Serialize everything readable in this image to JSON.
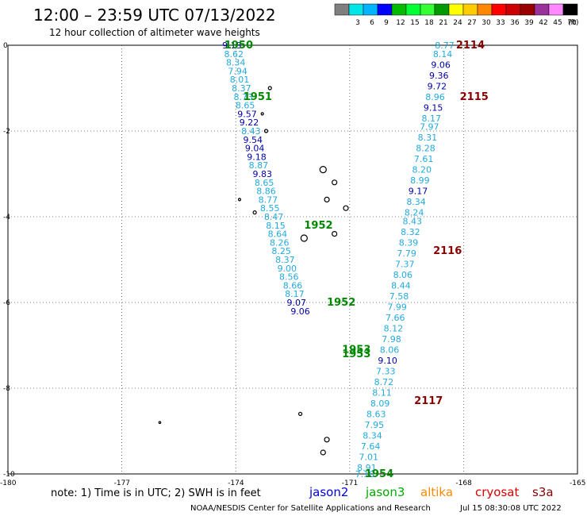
{
  "header": {
    "title": "12:00 – 23:59 UTC 07/13/2022",
    "subtitle": "12 hour collection of altimeter wave heights"
  },
  "legend": {
    "unit_label": "(ft)",
    "swatches": [
      {
        "label": "",
        "color": "#7f7f7f"
      },
      {
        "label": "3",
        "color": "#00e5e5"
      },
      {
        "label": "6",
        "color": "#00b4ff"
      },
      {
        "label": "9",
        "color": "#0000ff"
      },
      {
        "label": "12",
        "color": "#00bb00"
      },
      {
        "label": "15",
        "color": "#00ff33"
      },
      {
        "label": "18",
        "color": "#33ff33"
      },
      {
        "label": "21",
        "color": "#009900"
      },
      {
        "label": "24",
        "color": "#ffff00"
      },
      {
        "label": "27",
        "color": "#ffcc00"
      },
      {
        "label": "30",
        "color": "#ff8800"
      },
      {
        "label": "33",
        "color": "#ff0000"
      },
      {
        "label": "36",
        "color": "#cc0000"
      },
      {
        "label": "39",
        "color": "#990000"
      },
      {
        "label": "42",
        "color": "#993399"
      },
      {
        "label": "45",
        "color": "#ff88ff"
      },
      {
        "label": "70",
        "color": "#000000"
      }
    ]
  },
  "footer": {
    "note": "note:  1) Time is in UTC; 2) SWH is in feet",
    "credit": "NOAA/NESDIS Center for Satellite Applications and Research",
    "timestamp": "Jul 15 08:30:08 UTC 2022",
    "satellites": [
      {
        "name": "jason2",
        "color": "#0000dd"
      },
      {
        "name": "jason3",
        "color": "#00aa00"
      },
      {
        "name": "altika",
        "color": "#ff8800"
      },
      {
        "name": "cryosat",
        "color": "#dd0000"
      },
      {
        "name": "s3a",
        "color": "#880000"
      }
    ]
  },
  "chart_data": {
    "type": "scatter",
    "xlim": [
      -180,
      -165
    ],
    "ylim": [
      -10,
      0
    ],
    "x_ticks": [
      "-180",
      "-177",
      "-174",
      "-171",
      "-168",
      "-165"
    ],
    "y_ticks": [
      "0",
      "-2",
      "-4",
      "-6",
      "-8",
      "-10"
    ],
    "grid": true,
    "colors": {
      "light": "#22aadd",
      "dark": "#0000aa",
      "jason3": "#008800",
      "cryosat": "#880000"
    },
    "time_labels": [
      {
        "text": "1950",
        "x": -174.3,
        "y": 0.0,
        "group": "jason3"
      },
      {
        "text": "1951",
        "x": -173.8,
        "y": -1.2,
        "group": "jason3"
      },
      {
        "text": "1952",
        "x": -172.2,
        "y": -4.2,
        "group": "jason3"
      },
      {
        "text": "1952",
        "x": -171.6,
        "y": -6.0,
        "group": "jason3"
      },
      {
        "text": "1953",
        "x": -171.2,
        "y": -7.1,
        "group": "jason3"
      },
      {
        "text": "1953",
        "x": -171.2,
        "y": -7.2,
        "group": "jason3"
      },
      {
        "text": "1954",
        "x": -170.6,
        "y": -10.0,
        "group": "jason3"
      },
      {
        "text": "2114",
        "x": -168.2,
        "y": 0.0,
        "group": "cryosat"
      },
      {
        "text": "2115",
        "x": -168.1,
        "y": -1.2,
        "group": "cryosat"
      },
      {
        "text": "2116",
        "x": -168.8,
        "y": -4.8,
        "group": "cryosat"
      },
      {
        "text": "2117",
        "x": -169.3,
        "y": -8.3,
        "group": "cryosat"
      }
    ],
    "series": [
      {
        "name": "jason3",
        "points": [
          {
            "x": -174.1,
            "y": 0.0,
            "v": "9.13",
            "c": "dark"
          },
          {
            "x": -174.05,
            "y": -0.2,
            "v": "8.62",
            "c": "light"
          },
          {
            "x": -174.0,
            "y": -0.4,
            "v": "8.34",
            "c": "light"
          },
          {
            "x": -173.95,
            "y": -0.6,
            "v": "7.94",
            "c": "light"
          },
          {
            "x": -173.9,
            "y": -0.8,
            "v": "8.01",
            "c": "light"
          },
          {
            "x": -173.85,
            "y": -1.0,
            "v": "8.37",
            "c": "light"
          },
          {
            "x": -173.8,
            "y": -1.2,
            "v": "8.73",
            "c": "light"
          },
          {
            "x": -173.75,
            "y": -1.4,
            "v": "8.65",
            "c": "light"
          },
          {
            "x": -173.7,
            "y": -1.6,
            "v": "9.57",
            "c": "dark"
          },
          {
            "x": -173.65,
            "y": -1.8,
            "v": "9.22",
            "c": "dark"
          },
          {
            "x": -173.6,
            "y": -2.0,
            "v": "8.43",
            "c": "light"
          },
          {
            "x": -173.55,
            "y": -2.2,
            "v": "9.54",
            "c": "dark"
          },
          {
            "x": -173.5,
            "y": -2.4,
            "v": "9.04",
            "c": "dark"
          },
          {
            "x": -173.45,
            "y": -2.6,
            "v": "9.18",
            "c": "dark"
          },
          {
            "x": -173.4,
            "y": -2.8,
            "v": "8.87",
            "c": "light"
          },
          {
            "x": -173.3,
            "y": -3.0,
            "v": "9.83",
            "c": "dark"
          },
          {
            "x": -173.25,
            "y": -3.2,
            "v": "8.65",
            "c": "light"
          },
          {
            "x": -173.2,
            "y": -3.4,
            "v": "8.86",
            "c": "light"
          },
          {
            "x": -173.15,
            "y": -3.6,
            "v": "8.77",
            "c": "light"
          },
          {
            "x": -173.1,
            "y": -3.8,
            "v": "8.55",
            "c": "light"
          },
          {
            "x": -173.0,
            "y": -4.0,
            "v": "8.47",
            "c": "light"
          },
          {
            "x": -172.95,
            "y": -4.2,
            "v": "8.15",
            "c": "light"
          },
          {
            "x": -172.9,
            "y": -4.4,
            "v": "8.64",
            "c": "light"
          },
          {
            "x": -172.85,
            "y": -4.6,
            "v": "8.26",
            "c": "light"
          },
          {
            "x": -172.8,
            "y": -4.8,
            "v": "8.25",
            "c": "light"
          },
          {
            "x": -172.7,
            "y": -5.0,
            "v": "8.37",
            "c": "light"
          },
          {
            "x": -172.65,
            "y": -5.2,
            "v": "9.00",
            "c": "light"
          },
          {
            "x": -172.6,
            "y": -5.4,
            "v": "8.56",
            "c": "light"
          },
          {
            "x": -172.5,
            "y": -5.6,
            "v": "8.66",
            "c": "light"
          },
          {
            "x": -172.45,
            "y": -5.8,
            "v": "8.17",
            "c": "light"
          },
          {
            "x": -172.4,
            "y": -6.0,
            "v": "9.07",
            "c": "dark"
          },
          {
            "x": -172.3,
            "y": -6.2,
            "v": "9.06",
            "c": "dark"
          }
        ]
      },
      {
        "name": "cryosat",
        "points": [
          {
            "x": -168.5,
            "y": 0.0,
            "v": "8.77",
            "c": "light"
          },
          {
            "x": -168.55,
            "y": -0.2,
            "v": "8.14",
            "c": "light"
          },
          {
            "x": -168.6,
            "y": -0.45,
            "v": "9.06",
            "c": "dark"
          },
          {
            "x": -168.65,
            "y": -0.7,
            "v": "9.36",
            "c": "dark"
          },
          {
            "x": -168.7,
            "y": -0.95,
            "v": "9.72",
            "c": "dark"
          },
          {
            "x": -168.75,
            "y": -1.2,
            "v": "8.96",
            "c": "light"
          },
          {
            "x": -168.8,
            "y": -1.45,
            "v": "9.15",
            "c": "dark"
          },
          {
            "x": -168.85,
            "y": -1.7,
            "v": "8.17",
            "c": "light"
          },
          {
            "x": -168.9,
            "y": -1.9,
            "v": "7.97",
            "c": "light"
          },
          {
            "x": -168.95,
            "y": -2.15,
            "v": "8.31",
            "c": "light"
          },
          {
            "x": -169.0,
            "y": -2.4,
            "v": "8.28",
            "c": "light"
          },
          {
            "x": -169.05,
            "y": -2.65,
            "v": "7.61",
            "c": "light"
          },
          {
            "x": -169.1,
            "y": -2.9,
            "v": "8.20",
            "c": "light"
          },
          {
            "x": -169.15,
            "y": -3.15,
            "v": "8.99",
            "c": "light"
          },
          {
            "x": -169.2,
            "y": -3.4,
            "v": "9.17",
            "c": "dark"
          },
          {
            "x": -169.25,
            "y": -3.65,
            "v": "8.34",
            "c": "light"
          },
          {
            "x": -169.3,
            "y": -3.9,
            "v": "8.24",
            "c": "light"
          },
          {
            "x": -169.35,
            "y": -4.1,
            "v": "8.43",
            "c": "light"
          },
          {
            "x": -169.4,
            "y": -4.35,
            "v": "8.32",
            "c": "light"
          },
          {
            "x": -169.45,
            "y": -4.6,
            "v": "8.39",
            "c": "light"
          },
          {
            "x": -169.5,
            "y": -4.85,
            "v": "7.79",
            "c": "light"
          },
          {
            "x": -169.55,
            "y": -5.1,
            "v": "7.37",
            "c": "light"
          },
          {
            "x": -169.6,
            "y": -5.35,
            "v": "8.06",
            "c": "light"
          },
          {
            "x": -169.65,
            "y": -5.6,
            "v": "8.44",
            "c": "light"
          },
          {
            "x": -169.7,
            "y": -5.85,
            "v": "7.58",
            "c": "light"
          },
          {
            "x": -169.75,
            "y": -6.1,
            "v": "7.99",
            "c": "light"
          },
          {
            "x": -169.8,
            "y": -6.35,
            "v": "7.66",
            "c": "light"
          },
          {
            "x": -169.85,
            "y": -6.6,
            "v": "8.12",
            "c": "light"
          },
          {
            "x": -169.9,
            "y": -6.85,
            "v": "7.98",
            "c": "light"
          },
          {
            "x": -169.95,
            "y": -7.1,
            "v": "8.06",
            "c": "light"
          },
          {
            "x": -170.0,
            "y": -7.35,
            "v": "9.10",
            "c": "dark"
          },
          {
            "x": -170.05,
            "y": -7.6,
            "v": "7.33",
            "c": "light"
          },
          {
            "x": -170.1,
            "y": -7.85,
            "v": "8.72",
            "c": "light"
          },
          {
            "x": -170.15,
            "y": -8.1,
            "v": "8.11",
            "c": "light"
          },
          {
            "x": -170.2,
            "y": -8.35,
            "v": "8.09",
            "c": "light"
          },
          {
            "x": -170.3,
            "y": -8.6,
            "v": "8.63",
            "c": "light"
          },
          {
            "x": -170.35,
            "y": -8.85,
            "v": "7.95",
            "c": "light"
          },
          {
            "x": -170.4,
            "y": -9.1,
            "v": "8.34",
            "c": "light"
          },
          {
            "x": -170.45,
            "y": -9.35,
            "v": "7.64",
            "c": "light"
          },
          {
            "x": -170.5,
            "y": -9.6,
            "v": "7.01",
            "c": "light"
          },
          {
            "x": -170.55,
            "y": -9.85,
            "v": "8.91",
            "c": "light"
          },
          {
            "x": -170.6,
            "y": -10.0,
            "v": "7.10",
            "c": "light"
          }
        ]
      }
    ]
  }
}
